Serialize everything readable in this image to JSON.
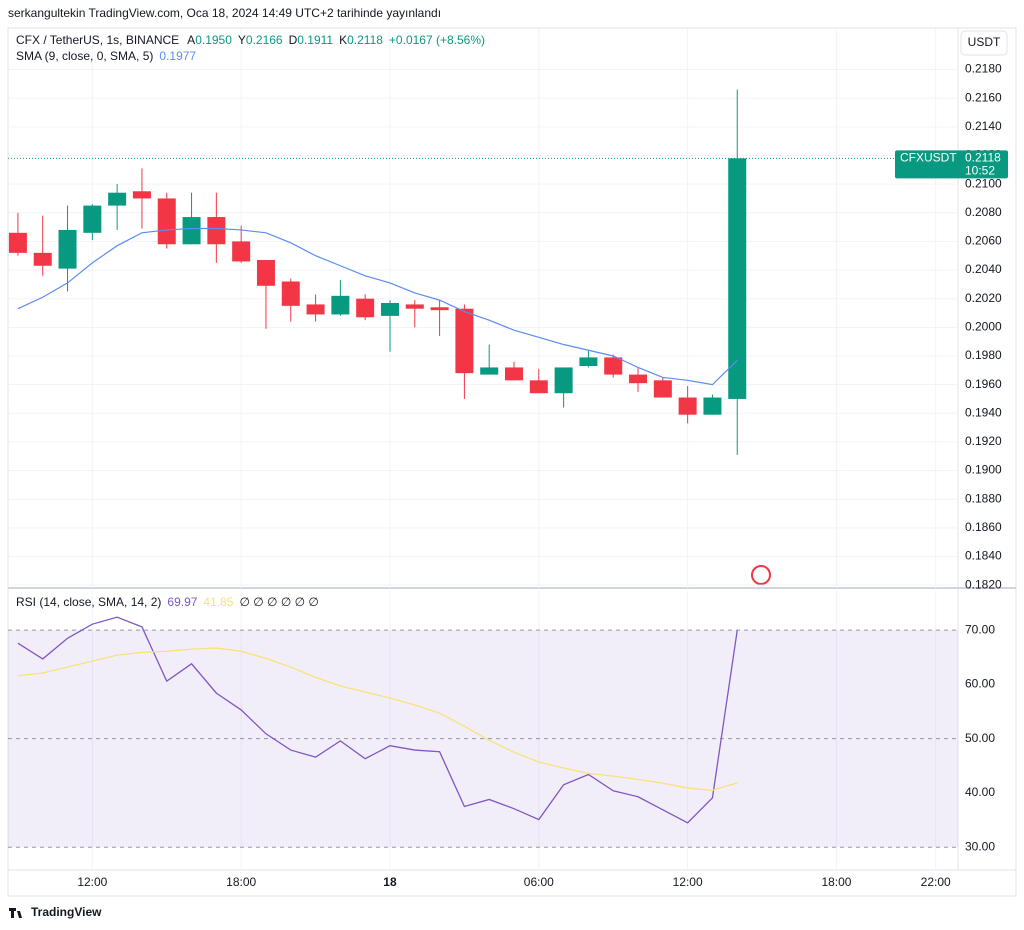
{
  "header": {
    "caption": "serkangultekin TradingView.com, Oca 18, 2024 14:49 UTC+2 tarihinde yayınlandı"
  },
  "chart_data": [
    {
      "type": "candlestick",
      "title": "CFX / TetherUS, 1s, BINANCE",
      "ohlc_legend": [
        {
          "label": "A",
          "value": "0.1950"
        },
        {
          "label": "Y",
          "value": "0.2166"
        },
        {
          "label": "D",
          "value": "0.1911"
        },
        {
          "label": "K",
          "value": "0.2118"
        }
      ],
      "change": "+0.0167 (+8.56%)",
      "currency": "USDT",
      "open": [
        0.2066,
        0.2052,
        0.2041,
        0.2066,
        0.2085,
        0.2095,
        0.209,
        0.2058,
        0.2077,
        0.206,
        0.2047,
        0.2032,
        0.2016,
        0.2009,
        0.202,
        0.2008,
        0.2016,
        0.2014,
        0.2013,
        0.1967,
        0.1972,
        0.1963,
        0.1954,
        0.1973,
        0.1979,
        0.1967,
        0.1963,
        0.1951,
        0.1939,
        0.195
      ],
      "high": [
        0.208,
        0.2078,
        0.2085,
        0.2086,
        0.21,
        0.2111,
        0.2094,
        0.2094,
        0.2094,
        0.2071,
        0.2047,
        0.2034,
        0.2023,
        0.2033,
        0.2023,
        0.2019,
        0.2019,
        0.2019,
        0.2016,
        0.1988,
        0.1976,
        0.1971,
        0.1972,
        0.1984,
        0.1981,
        0.1972,
        0.1965,
        0.1959,
        0.1953,
        0.2166
      ],
      "low": [
        0.205,
        0.2036,
        0.2025,
        0.2061,
        0.2068,
        0.2069,
        0.2055,
        0.2058,
        0.2045,
        0.2045,
        0.1999,
        0.2004,
        0.2004,
        0.2008,
        0.2005,
        0.1983,
        0.2,
        0.1994,
        0.195,
        0.1967,
        0.1963,
        0.1954,
        0.1944,
        0.1972,
        0.1965,
        0.1955,
        0.1951,
        0.1933,
        0.1939,
        0.1911
      ],
      "close": [
        0.2052,
        0.2043,
        0.2068,
        0.2085,
        0.2094,
        0.209,
        0.2058,
        0.2077,
        0.2058,
        0.2046,
        0.2029,
        0.2015,
        0.2009,
        0.2022,
        0.2007,
        0.2017,
        0.2013,
        0.2012,
        0.1968,
        0.1972,
        0.1963,
        0.1954,
        0.1972,
        0.1979,
        0.1967,
        0.1961,
        0.1951,
        0.1939,
        0.1951,
        0.2118
      ],
      "up_color": "#089981",
      "down_color": "#f23645",
      "series": [
        {
          "name": "SMA (9, close, 0, SMA, 5)",
          "color": "#5b8def",
          "values": [
            0.2013,
            0.2021,
            0.2031,
            0.2045,
            0.2057,
            0.2066,
            0.2068,
            0.2069,
            0.2069,
            0.2068,
            0.2066,
            0.2059,
            0.205,
            0.2043,
            0.2036,
            0.2031,
            0.2024,
            0.2019,
            0.2011,
            0.2005,
            0.1998,
            0.1993,
            0.1988,
            0.1984,
            0.198,
            0.1972,
            0.1965,
            0.1963,
            0.196,
            0.1977
          ]
        }
      ],
      "price_tag": {
        "symbol": "CFXUSDT",
        "countdown": "10:52"
      },
      "ylim": [
        0.1818,
        0.2209
      ],
      "yticks": [
        {
          "value": 0.182,
          "label": "0.1820"
        },
        {
          "value": 0.184,
          "label": "0.1840"
        },
        {
          "value": 0.186,
          "label": "0.1860"
        },
        {
          "value": 0.188,
          "label": "0.1880"
        },
        {
          "value": 0.19,
          "label": "0.1900"
        },
        {
          "value": 0.192,
          "label": "0.1920"
        },
        {
          "value": 0.194,
          "label": "0.1940"
        },
        {
          "value": 0.196,
          "label": "0.1960"
        },
        {
          "value": 0.198,
          "label": "0.1980"
        },
        {
          "value": 0.2,
          "label": "0.2000"
        },
        {
          "value": 0.202,
          "label": "0.2020"
        },
        {
          "value": 0.204,
          "label": "0.2040"
        },
        {
          "value": 0.206,
          "label": "0.2060"
        },
        {
          "value": 0.208,
          "label": "0.2080"
        },
        {
          "value": 0.21,
          "label": "0.2100"
        },
        {
          "value": 0.212,
          "label": "0.2120"
        },
        {
          "value": 0.214,
          "label": "0.2140"
        },
        {
          "value": 0.216,
          "label": "0.2160"
        },
        {
          "value": 0.218,
          "label": "0.2180"
        }
      ],
      "xlim": [
        -0.4,
        37.9
      ],
      "xticks": [
        {
          "value": 3,
          "label": "12:00"
        },
        {
          "value": 9,
          "label": "18:00"
        },
        {
          "value": 15,
          "label": "18"
        },
        {
          "value": 21,
          "label": "06:00"
        },
        {
          "value": 27,
          "label": "12:00"
        },
        {
          "value": 33,
          "label": "18:00"
        },
        {
          "value": 37,
          "label": "22:00"
        }
      ],
      "grid": true
    },
    {
      "type": "line",
      "title": "RSI (14, close, SMA, 14, 2)",
      "placeholders": "∅ ∅ ∅ ∅ ∅ ∅",
      "series": [
        {
          "color": "#7e57c2",
          "values": [
            67.6,
            64.7,
            68.5,
            71.1,
            72.4,
            70.6,
            60.6,
            63.8,
            58.4,
            55.3,
            50.9,
            47.9,
            46.6,
            49.6,
            46.3,
            48.7,
            47.9,
            47.6,
            37.5,
            38.8,
            37.1,
            35.1,
            41.5,
            43.4,
            40.4,
            39.3,
            36.9,
            34.5,
            39.1,
            69.97
          ]
        },
        {
          "color": "#f7e27a",
          "values": [
            61.6,
            62.1,
            63.2,
            64.3,
            65.4,
            65.9,
            66.1,
            66.5,
            66.7,
            66.1,
            64.8,
            63.2,
            61.3,
            59.7,
            58.6,
            57.5,
            56.2,
            54.7,
            52.3,
            49.7,
            47.5,
            45.7,
            44.6,
            43.6,
            43.1,
            42.5,
            41.8,
            40.9,
            40.5,
            41.85
          ]
        }
      ],
      "band": [
        30,
        70
      ],
      "hlines": [
        30,
        50,
        70
      ],
      "ylim": [
        25.8,
        77.4
      ],
      "yticks": [
        {
          "value": 30,
          "label": "30.00"
        },
        {
          "value": 40,
          "label": "40.00"
        },
        {
          "value": 50,
          "label": "50.00"
        },
        {
          "value": 60,
          "label": "60.00"
        },
        {
          "value": 70,
          "label": "70.00"
        }
      ],
      "xlim": [
        -0.4,
        37.9
      ]
    }
  ],
  "footer": {
    "brand": "TradingView"
  }
}
